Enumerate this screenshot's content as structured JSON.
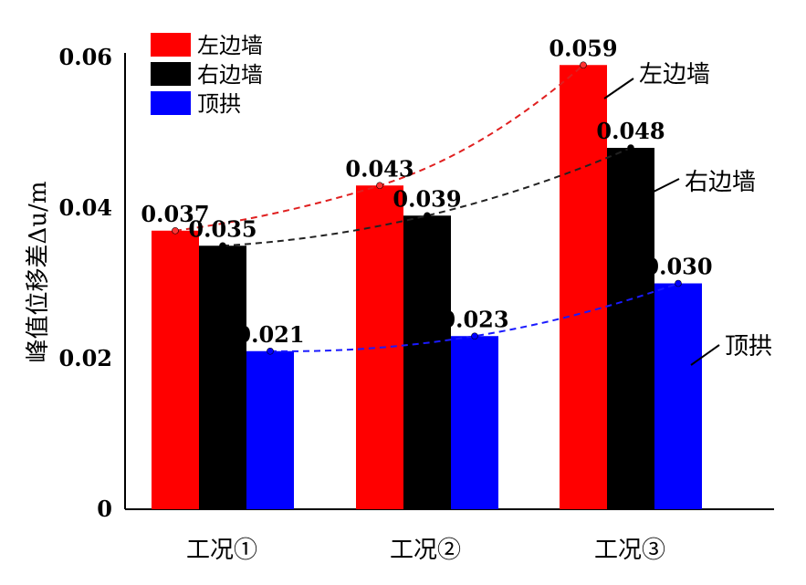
{
  "chart_data": {
    "type": "bar",
    "ylabel": "峰值位移差Δu/m",
    "ylim": [
      0,
      0.06
    ],
    "yticks": [
      "0",
      "0.02",
      "0.04",
      "0.06"
    ],
    "categories": [
      "工况①",
      "工况②",
      "工况③"
    ],
    "series": [
      {
        "name": "左边墙",
        "color": "#ff0000",
        "values": [
          0.037,
          0.043,
          0.059
        ],
        "labels": [
          "0.037",
          "0.043",
          "0.059"
        ],
        "trend_color": "#e02020"
      },
      {
        "name": "右边墙",
        "color": "#000000",
        "values": [
          0.035,
          0.039,
          0.048
        ],
        "labels": [
          "0.035",
          "0.039",
          "0.048"
        ],
        "trend_color": "#222222"
      },
      {
        "name": "顶拱",
        "color": "#0000ff",
        "values": [
          0.021,
          0.023,
          0.03
        ],
        "labels": [
          "0.021",
          "0.023",
          "0.030"
        ],
        "trend_color": "#1a1aff"
      }
    ],
    "legend": {
      "placement": "top-left",
      "entries": [
        "左边墙",
        "右边墙",
        "顶拱"
      ]
    },
    "annotations": [
      "左边墙",
      "右边墙",
      "顶拱"
    ],
    "grid": false
  }
}
